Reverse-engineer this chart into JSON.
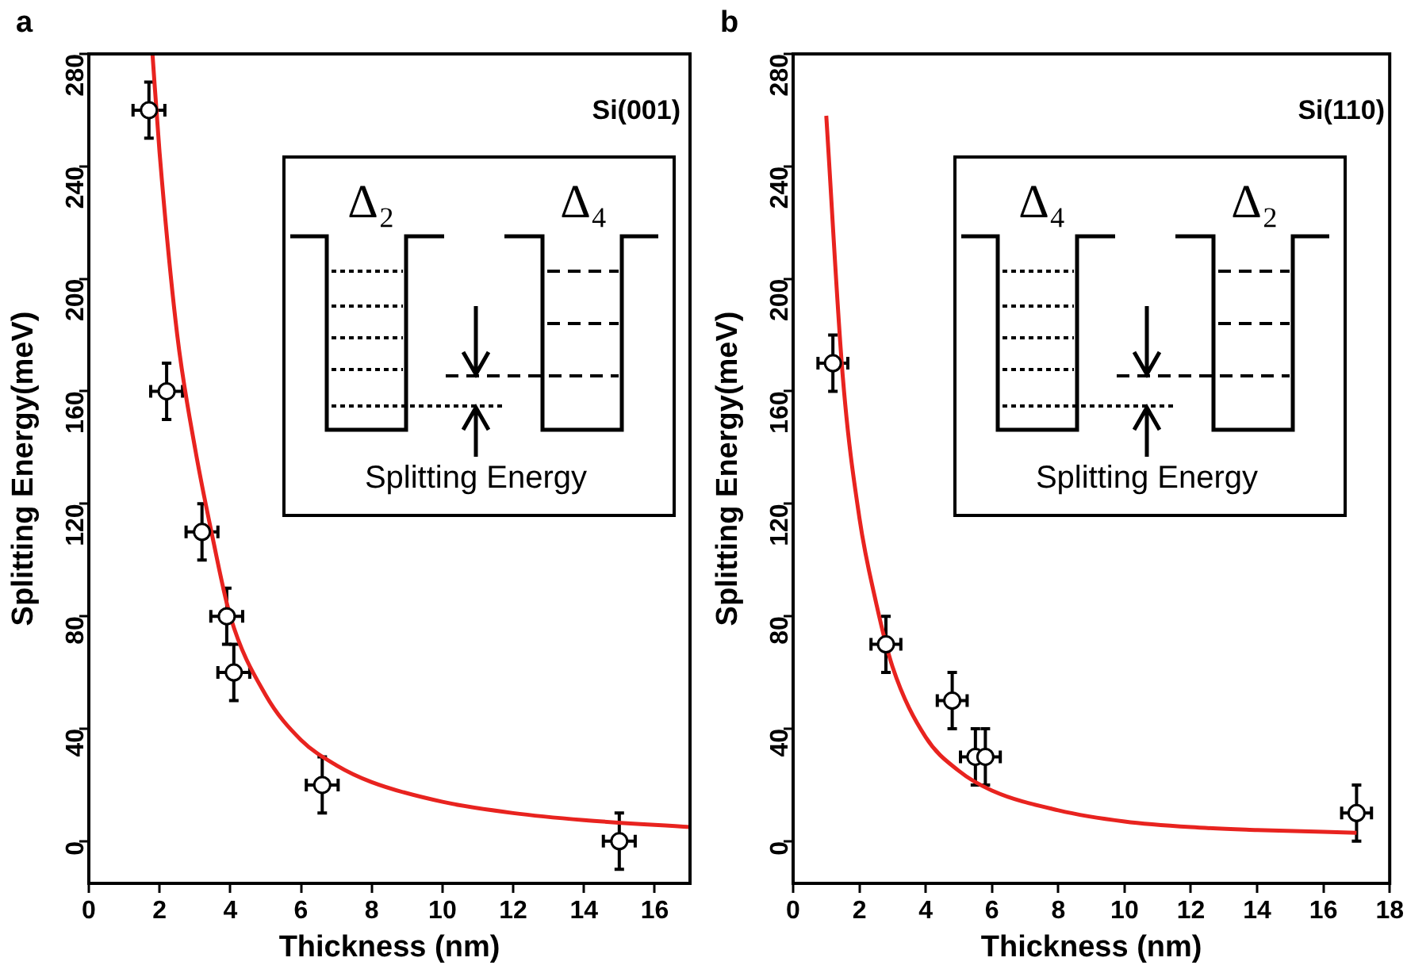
{
  "chart_data": [
    {
      "type": "scatter",
      "title": "a",
      "xlabel": "Thickness (nm)",
      "ylabel": "Splitting Energy(meV)",
      "xlim": [
        0,
        17
      ],
      "xticks": [
        0,
        2,
        4,
        6,
        8,
        10,
        12,
        14,
        16
      ],
      "ylim": [
        -15,
        280
      ],
      "yticks": [
        0,
        40,
        80,
        120,
        160,
        200,
        240,
        280
      ],
      "grid": false,
      "legend": false,
      "marker": "circle",
      "annotations": [
        "Si(001)",
        "Δ₂",
        "Δ₄",
        "Splitting Energy"
      ],
      "series": [
        {
          "color": "#000000",
          "x": [
            1.7,
            2.2,
            3.2,
            3.9,
            4.1,
            6.6,
            15
          ],
          "values": [
            260,
            160,
            110,
            80,
            60,
            20,
            0
          ],
          "errors": [
            10,
            10,
            10,
            10,
            10,
            10,
            10
          ],
          "xerrors": [
            0.45,
            0.45,
            0.45,
            0.45,
            0.45,
            0.45,
            0.45
          ]
        },
        {
          "type": "line",
          "color": "#e8231f",
          "marker": "none",
          "x": [
            1.8,
            2,
            2.5,
            3,
            3.5,
            4,
            5,
            6,
            7,
            8,
            10,
            12,
            14,
            17
          ],
          "values": [
            280,
            245,
            180,
            140,
            108,
            80,
            52,
            36,
            27,
            21,
            14,
            10,
            7.5,
            5
          ]
        }
      ]
    },
    {
      "type": "scatter",
      "title": "b",
      "xlabel": "Thickness (nm)",
      "ylabel": "Splitting Energy(meV)",
      "xlim": [
        0,
        18
      ],
      "xticks": [
        0,
        2,
        4,
        6,
        8,
        10,
        12,
        14,
        16,
        18
      ],
      "ylim": [
        -15,
        280
      ],
      "yticks": [
        0,
        40,
        80,
        120,
        160,
        200,
        240,
        280
      ],
      "grid": false,
      "legend": false,
      "marker": "circle",
      "annotations": [
        "Si(110)",
        "Δ₄",
        "Δ₂",
        "Splitting Energy"
      ],
      "series": [
        {
          "color": "#000000",
          "x": [
            1.2,
            2.8,
            4.8,
            5.5,
            5.8,
            17
          ],
          "values": [
            170,
            70,
            50,
            30,
            30,
            10
          ],
          "errors": [
            10,
            10,
            10,
            10,
            10,
            10
          ],
          "xerrors": [
            0.45,
            0.45,
            0.45,
            0.45,
            0.45,
            0.45
          ]
        },
        {
          "type": "line",
          "color": "#e8231f",
          "marker": "none",
          "x": [
            1,
            1.5,
            2,
            2.5,
            3,
            4,
            5,
            6,
            8,
            10,
            12,
            14,
            17
          ],
          "values": [
            258,
            165,
            115,
            85,
            62,
            37,
            25,
            18,
            11,
            7,
            5,
            4,
            3
          ]
        }
      ]
    }
  ]
}
